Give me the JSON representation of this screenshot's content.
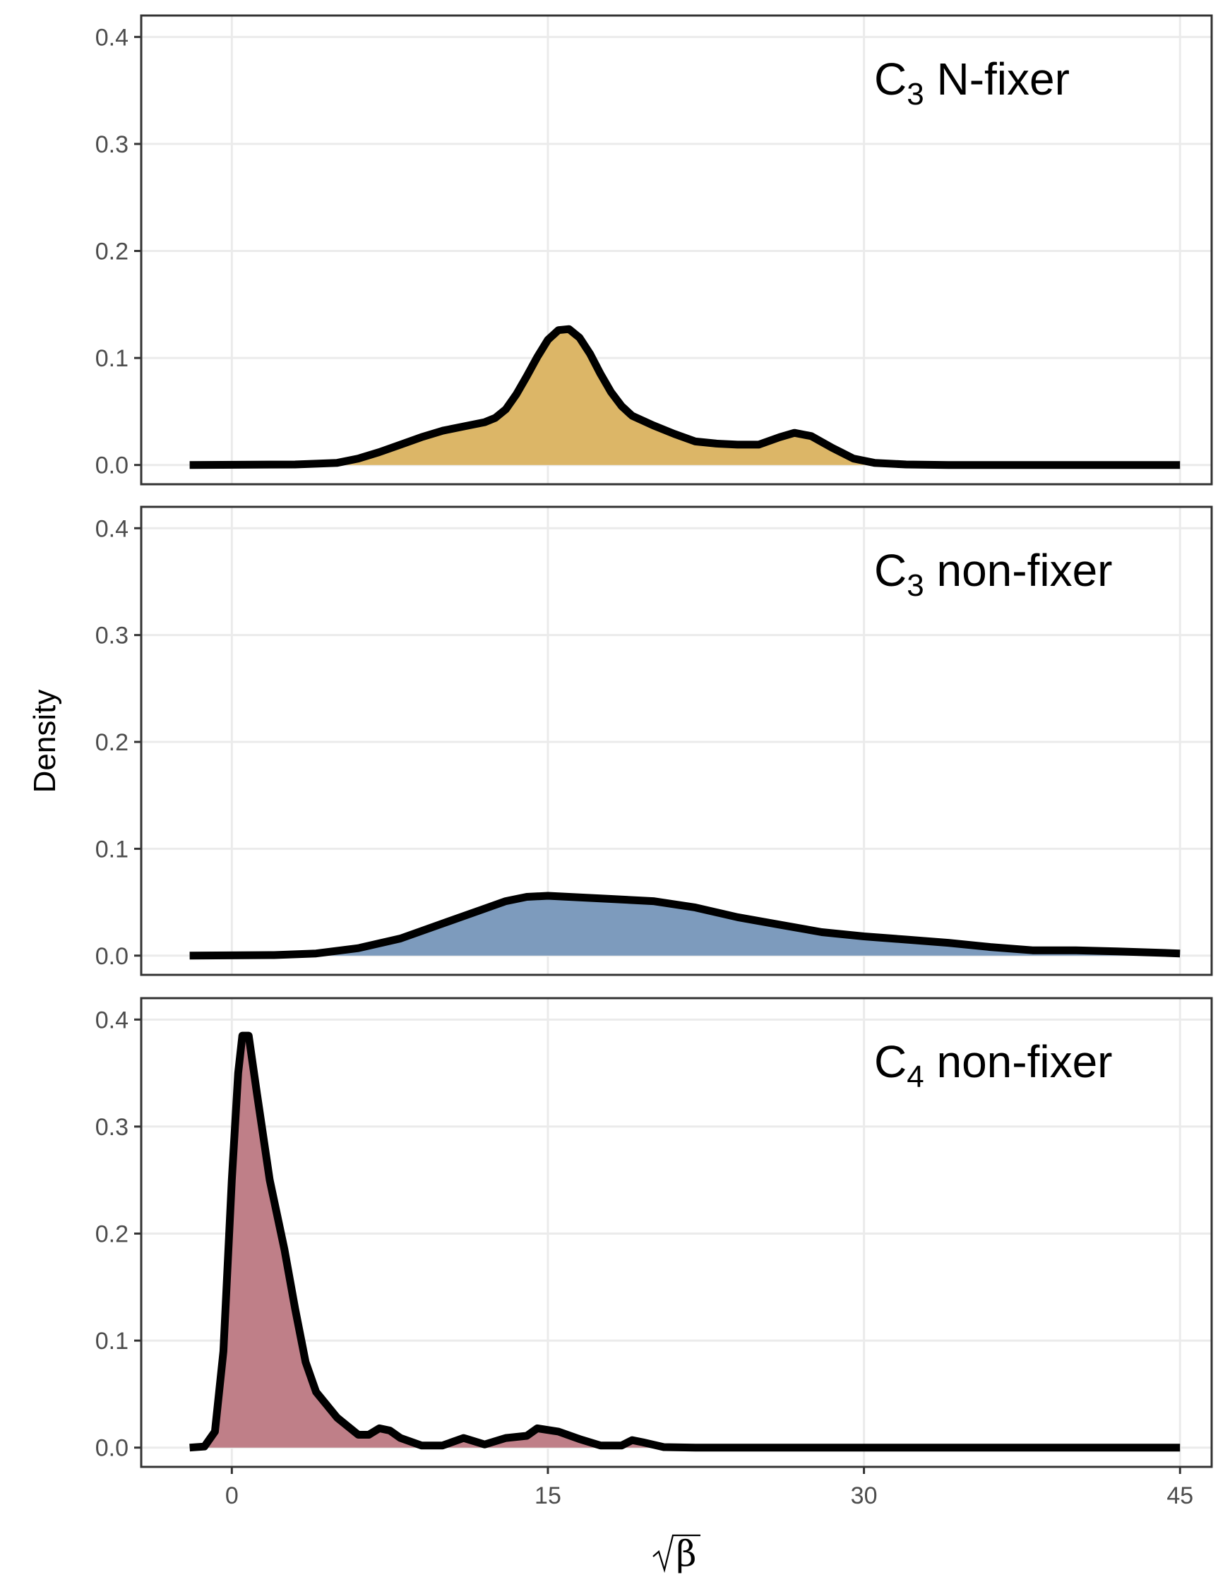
{
  "chart_data": {
    "type": "area",
    "ylabel": "Density",
    "xlabel": "√β",
    "xlim": [
      -4.3,
      46.5
    ],
    "ylim": [
      -0.018,
      0.42
    ],
    "x_ticks": [
      0,
      15,
      30,
      45
    ],
    "x_tick_labels": [
      "0",
      "15",
      "30",
      "45"
    ],
    "y_ticks": [
      0.0,
      0.1,
      0.2,
      0.3,
      0.4
    ],
    "y_tick_labels": [
      "0.0",
      "0.1",
      "0.2",
      "0.3",
      "0.4"
    ],
    "grid": true,
    "panels": [
      {
        "label_main": "C",
        "label_sub": "3",
        "label_rest": " N-fixer",
        "fill_color": "#dcb667",
        "points": [
          [
            -2,
            0.0
          ],
          [
            3,
            0.0005
          ],
          [
            5,
            0.002
          ],
          [
            6,
            0.006
          ],
          [
            7,
            0.012
          ],
          [
            8,
            0.019
          ],
          [
            9,
            0.026
          ],
          [
            10,
            0.032
          ],
          [
            11,
            0.036
          ],
          [
            12,
            0.04
          ],
          [
            12.5,
            0.044
          ],
          [
            13,
            0.052
          ],
          [
            13.5,
            0.066
          ],
          [
            14,
            0.083
          ],
          [
            14.5,
            0.101
          ],
          [
            15,
            0.117
          ],
          [
            15.5,
            0.126
          ],
          [
            16,
            0.127
          ],
          [
            16.5,
            0.119
          ],
          [
            17,
            0.104
          ],
          [
            17.5,
            0.085
          ],
          [
            18,
            0.068
          ],
          [
            18.5,
            0.055
          ],
          [
            19,
            0.046
          ],
          [
            20,
            0.037
          ],
          [
            21,
            0.029
          ],
          [
            22,
            0.022
          ],
          [
            23,
            0.02
          ],
          [
            24,
            0.019
          ],
          [
            25,
            0.019
          ],
          [
            26,
            0.026
          ],
          [
            26.7,
            0.03
          ],
          [
            27.5,
            0.027
          ],
          [
            28.5,
            0.016
          ],
          [
            29.5,
            0.006
          ],
          [
            30.5,
            0.002
          ],
          [
            32,
            0.0005
          ],
          [
            34,
            0.0
          ],
          [
            45,
            0.0
          ]
        ]
      },
      {
        "label_main": "C",
        "label_sub": "3",
        "label_rest": " non-fixer",
        "fill_color": "#7d9bbd",
        "points": [
          [
            -2,
            0.0
          ],
          [
            2,
            0.0005
          ],
          [
            4,
            0.002
          ],
          [
            6,
            0.007
          ],
          [
            8,
            0.016
          ],
          [
            10,
            0.03
          ],
          [
            12,
            0.044
          ],
          [
            13,
            0.051
          ],
          [
            14,
            0.055
          ],
          [
            15,
            0.056
          ],
          [
            16,
            0.055
          ],
          [
            18,
            0.053
          ],
          [
            20,
            0.051
          ],
          [
            22,
            0.045
          ],
          [
            24,
            0.036
          ],
          [
            26,
            0.029
          ],
          [
            28,
            0.022
          ],
          [
            30,
            0.018
          ],
          [
            32,
            0.015
          ],
          [
            34,
            0.012
          ],
          [
            36,
            0.008
          ],
          [
            38,
            0.005
          ],
          [
            40,
            0.005
          ],
          [
            42,
            0.004
          ],
          [
            45,
            0.002
          ]
        ]
      },
      {
        "label_main": "C",
        "label_sub": "4",
        "label_rest": " non-fixer",
        "fill_color": "#bf7f88",
        "points": [
          [
            -2,
            0.0
          ],
          [
            -1.3,
            0.001
          ],
          [
            -0.8,
            0.015
          ],
          [
            -0.4,
            0.09
          ],
          [
            0,
            0.25
          ],
          [
            0.3,
            0.35
          ],
          [
            0.5,
            0.385
          ],
          [
            0.8,
            0.385
          ],
          [
            1.2,
            0.33
          ],
          [
            1.8,
            0.25
          ],
          [
            2.5,
            0.185
          ],
          [
            3,
            0.13
          ],
          [
            3.5,
            0.08
          ],
          [
            4,
            0.052
          ],
          [
            5,
            0.028
          ],
          [
            6,
            0.012
          ],
          [
            6.5,
            0.012
          ],
          [
            7,
            0.018
          ],
          [
            7.5,
            0.016
          ],
          [
            8,
            0.009
          ],
          [
            9,
            0.002
          ],
          [
            10,
            0.002
          ],
          [
            11,
            0.009
          ],
          [
            12,
            0.003
          ],
          [
            13,
            0.009
          ],
          [
            14,
            0.011
          ],
          [
            14.5,
            0.018
          ],
          [
            15.5,
            0.015
          ],
          [
            16.5,
            0.008
          ],
          [
            17.5,
            0.002
          ],
          [
            18.5,
            0.002
          ],
          [
            19,
            0.007
          ],
          [
            19.5,
            0.005
          ],
          [
            20.5,
            0.0005
          ],
          [
            22,
            0.0
          ],
          [
            45,
            0.0
          ]
        ]
      }
    ]
  }
}
